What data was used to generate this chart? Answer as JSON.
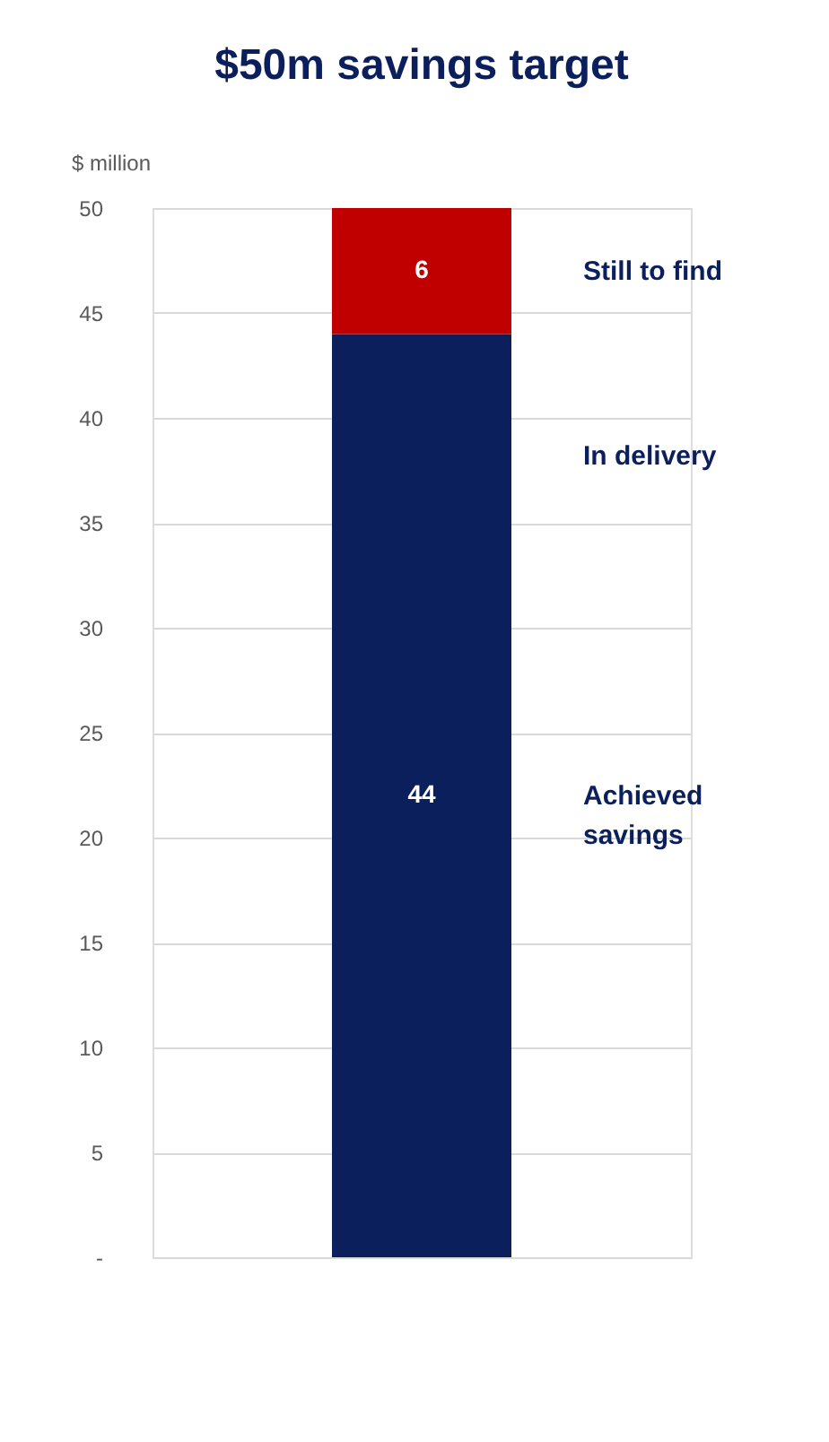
{
  "chart_data": {
    "type": "bar",
    "title": "$50m savings target",
    "ylabel": "$ million",
    "categories": [
      null
    ],
    "stacked": true,
    "series": [
      {
        "name": "Achieved savings",
        "color": "#0b1f5c",
        "values": [
          44
        ]
      },
      {
        "name": "Still to find",
        "color": "#c00000",
        "values": [
          6
        ]
      }
    ],
    "ylim": [
      0,
      50
    ],
    "yticks": [
      {
        "value": 0,
        "label": "-"
      },
      5,
      10,
      15,
      20,
      25,
      30,
      35,
      40,
      45,
      50
    ],
    "grid": "y",
    "data_labels": true,
    "annotations": [
      "In delivery"
    ]
  }
}
